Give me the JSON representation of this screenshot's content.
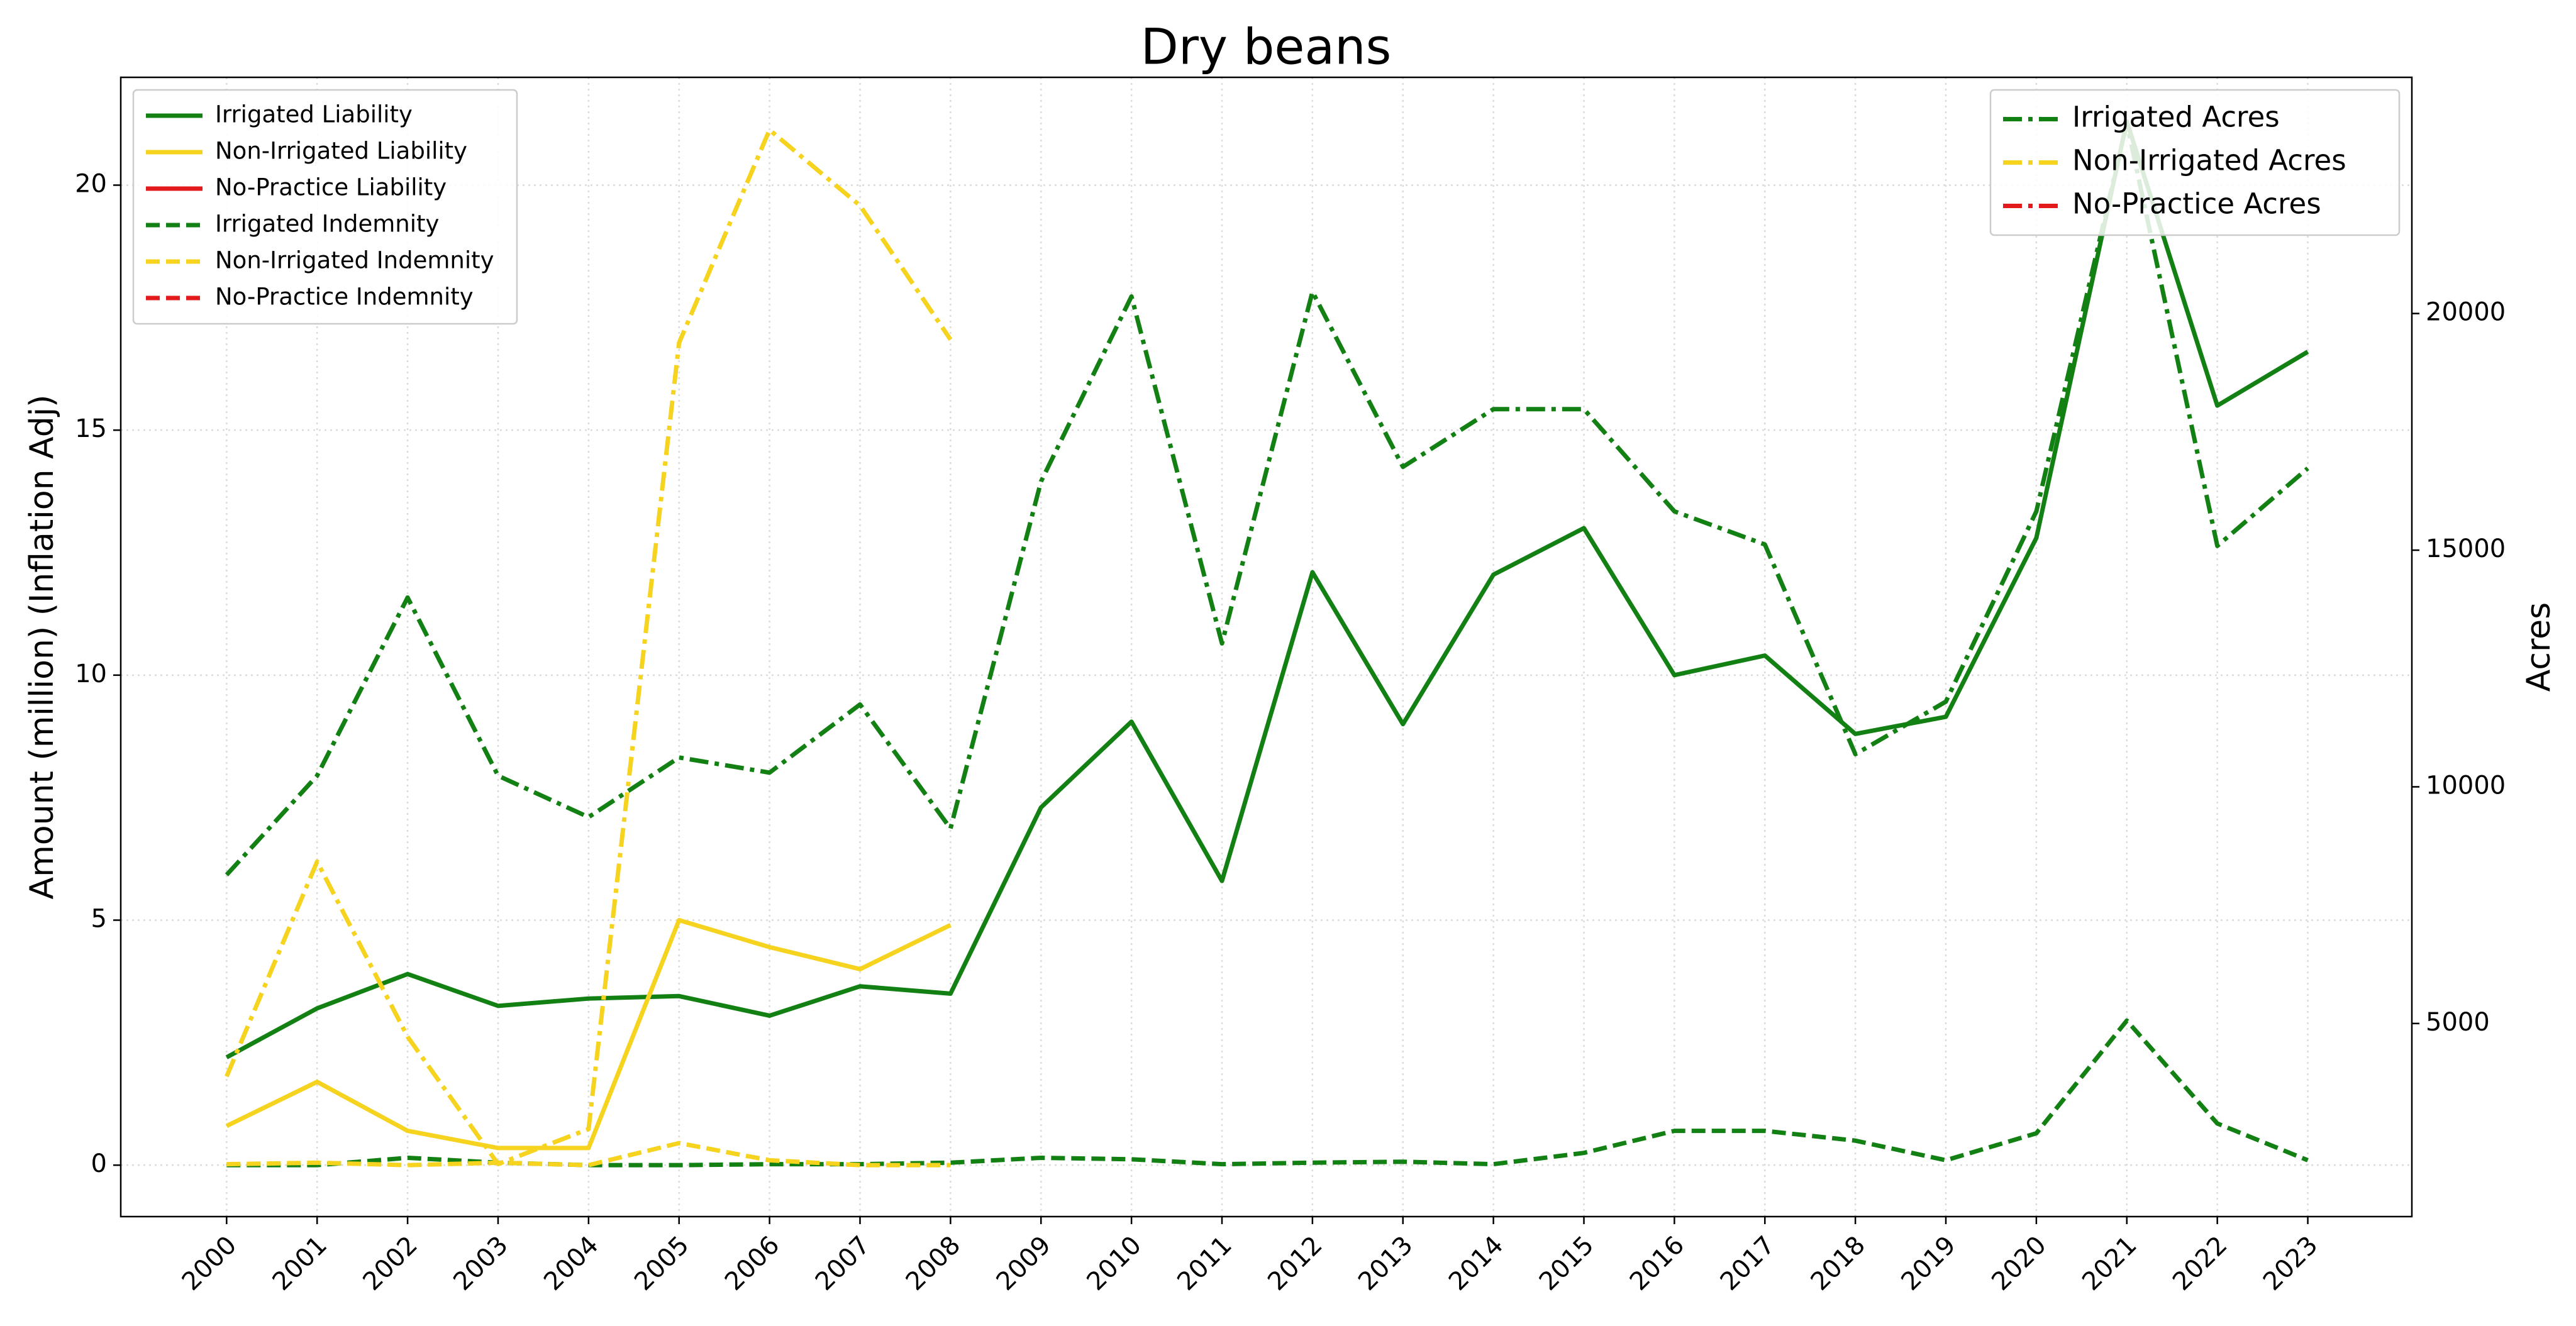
{
  "chart_data": {
    "type": "line",
    "title": "Dry beans",
    "ylabel": "Amount (million) (Inflation Adj)",
    "y2label": "Acres",
    "x": [
      2000,
      2001,
      2002,
      2003,
      2004,
      2005,
      2006,
      2007,
      2008,
      2009,
      2010,
      2011,
      2012,
      2013,
      2014,
      2015,
      2016,
      2017,
      2018,
      2019,
      2020,
      2021,
      2022,
      2023
    ],
    "xlim": [
      1998.83,
      2024.15
    ],
    "xticks": [
      2000,
      2001,
      2002,
      2003,
      2004,
      2005,
      2006,
      2007,
      2008,
      2009,
      2010,
      2011,
      2012,
      2013,
      2014,
      2015,
      2016,
      2017,
      2018,
      2019,
      2020,
      2021,
      2022,
      2023
    ],
    "ylim": [
      -1.05,
      22.2
    ],
    "yticks": [
      0,
      5,
      10,
      15,
      20
    ],
    "y2lim": [
      920,
      24990
    ],
    "y2ticks": [
      5000,
      10000,
      15000,
      20000
    ],
    "grid": true,
    "legend_loc": "upper left",
    "legend2_loc": "upper right",
    "series": [
      {
        "name": "Irrigated Liability",
        "color": "#138013",
        "linestyle": "solid",
        "axis": "y",
        "values": [
          2.2,
          3.2,
          3.9,
          3.25,
          3.4,
          3.45,
          3.05,
          3.65,
          3.5,
          7.3,
          9.05,
          5.8,
          12.1,
          9.0,
          12.05,
          13.0,
          10.0,
          10.4,
          8.8,
          9.15,
          12.8,
          21.3,
          15.5,
          16.6
        ]
      },
      {
        "name": "Non-Irrigated Liability",
        "color": "#f5d31f",
        "linestyle": "solid",
        "axis": "y",
        "values": [
          0.8,
          1.7,
          0.7,
          0.35,
          0.35,
          5.0,
          4.45,
          4.0,
          4.9,
          null,
          null,
          null,
          null,
          null,
          null,
          null,
          null,
          null,
          null,
          null,
          null,
          null,
          null,
          null
        ]
      },
      {
        "name": "No-Practice Liability",
        "color": "#e31a1c",
        "linestyle": "solid",
        "axis": "y",
        "values": [
          null,
          null,
          null,
          null,
          null,
          null,
          null,
          null,
          null,
          null,
          null,
          null,
          null,
          null,
          null,
          null,
          null,
          null,
          null,
          null,
          null,
          null,
          null,
          null
        ]
      },
      {
        "name": "Irrigated Indemnity",
        "color": "#138013",
        "linestyle": "dashed",
        "axis": "y",
        "values": [
          0,
          0,
          0.15,
          0.05,
          0,
          0,
          0.02,
          0.02,
          0.05,
          0.15,
          0.12,
          0.02,
          0.05,
          0.07,
          0.02,
          0.25,
          0.7,
          0.7,
          0.5,
          0.1,
          0.65,
          2.95,
          0.85,
          0.1
        ]
      },
      {
        "name": "Non-Irrigated Indemnity",
        "color": "#f5d31f",
        "linestyle": "dashed",
        "axis": "y",
        "values": [
          0.02,
          0.05,
          0,
          0.05,
          0,
          0.45,
          0.1,
          0,
          0,
          null,
          null,
          null,
          null,
          null,
          null,
          null,
          null,
          null,
          null,
          null,
          null,
          null,
          null,
          null
        ]
      },
      {
        "name": "No-Practice Indemnity",
        "color": "#e31a1c",
        "linestyle": "dashed",
        "axis": "y",
        "values": [
          null,
          null,
          null,
          null,
          null,
          null,
          null,
          null,
          null,
          null,
          null,
          null,
          null,
          null,
          null,
          null,
          null,
          null,
          null,
          null,
          null,
          null,
          null,
          null
        ]
      },
      {
        "name": "Irrigated Acres",
        "color": "#138013",
        "linestyle": "dashdot",
        "axis": "y2",
        "values": [
          8140,
          10235,
          14000,
          10235,
          9360,
          10620,
          10300,
          11740,
          9120,
          16450,
          20360,
          13030,
          20460,
          16760,
          17980,
          17980,
          15820,
          15120,
          10690,
          11800,
          15820,
          24020,
          15090,
          16730
        ]
      },
      {
        "name": "Non-Irrigated Acres",
        "color": "#f5d31f",
        "linestyle": "dashdot",
        "axis": "y2",
        "values": [
          3880,
          8420,
          4720,
          2030,
          2770,
          19380,
          23880,
          22280,
          19450,
          null,
          null,
          null,
          null,
          null,
          null,
          null,
          null,
          null,
          null,
          null,
          null,
          null,
          null,
          null
        ]
      },
      {
        "name": "No-Practice Acres",
        "color": "#e31a1c",
        "linestyle": "dashdot",
        "axis": "y2",
        "values": [
          null,
          null,
          null,
          null,
          null,
          null,
          null,
          null,
          null,
          null,
          null,
          null,
          null,
          null,
          null,
          null,
          null,
          null,
          null,
          null,
          null,
          null,
          null,
          null
        ]
      }
    ]
  }
}
